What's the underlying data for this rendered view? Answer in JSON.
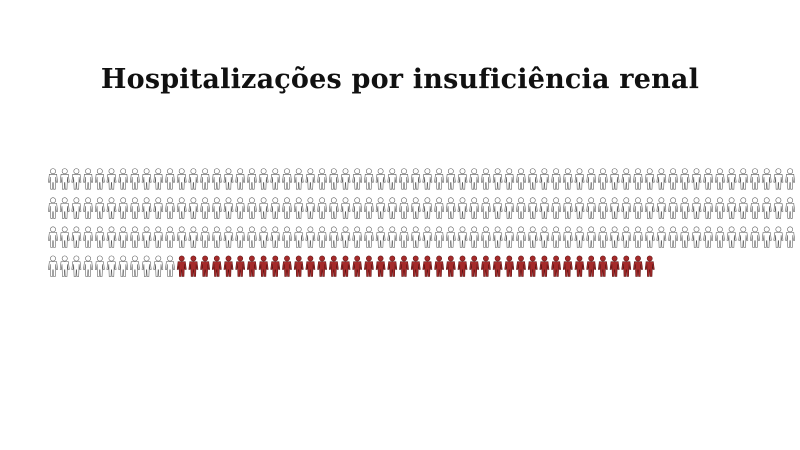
{
  "title": "Hospitalizações por insuficiência renal",
  "chart_data": {
    "type": "pictogram",
    "title": "Hospitalizações por insuficiência renal",
    "icon": "person-icon",
    "total_icons": 244,
    "highlighted_icons": 41,
    "icons_per_row": 64,
    "colors": {
      "highlight_fill": "#a52a2a",
      "highlight_stroke": "#5a1212",
      "base_fill": "#ffffff",
      "base_stroke": "#555555"
    }
  }
}
